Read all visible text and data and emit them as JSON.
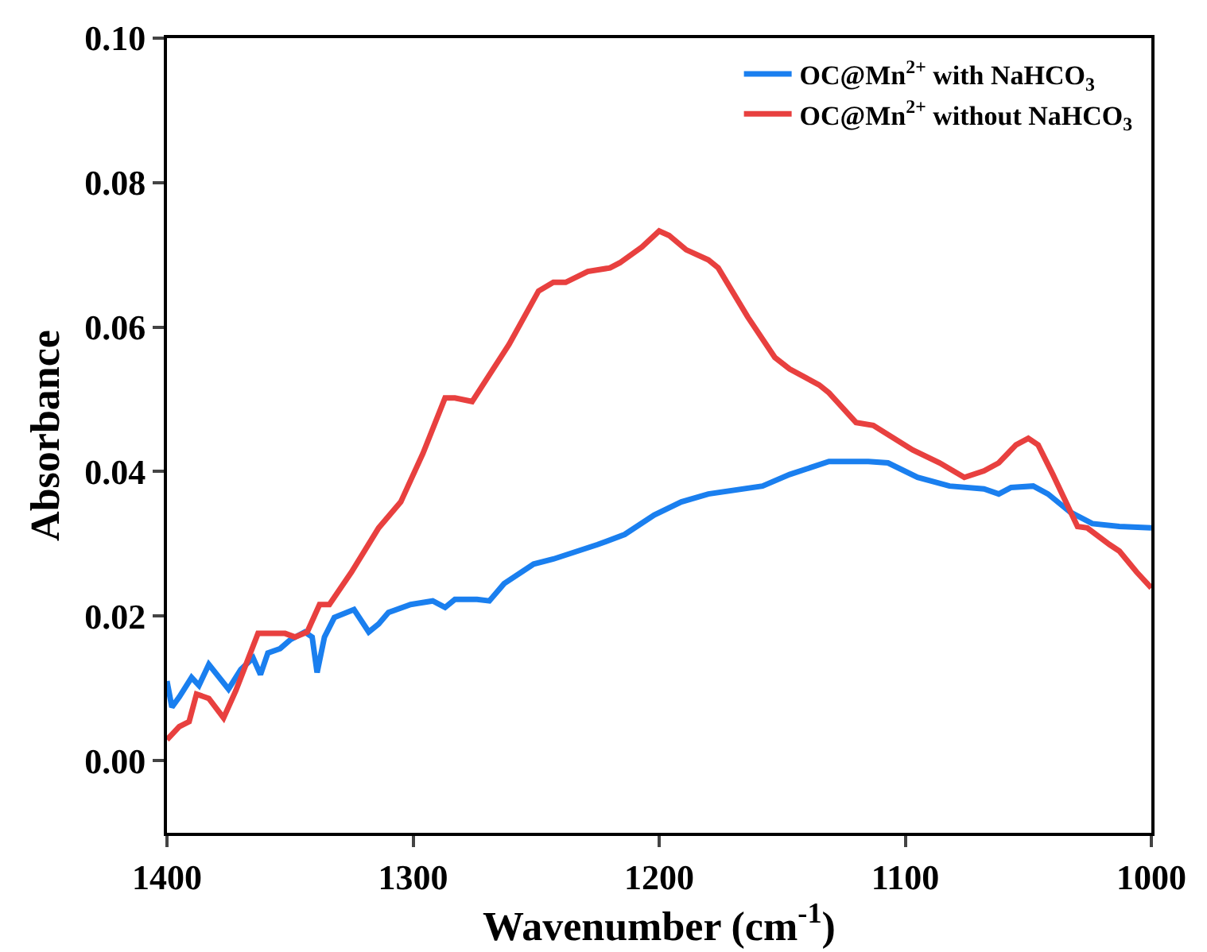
{
  "chart_data": {
    "type": "line",
    "xlabel": "Wavenumber (cm$^{-1}$)",
    "ylabel": "Absorbance",
    "xlim": [
      1400,
      1000
    ],
    "xticks": [
      1400,
      1300,
      1200,
      1100,
      1000
    ],
    "ylim": [
      -0.01,
      0.1
    ],
    "yticks": [
      {
        "value": 0,
        "label": "0.00"
      },
      {
        "value": 0.02,
        "label": "0.02"
      },
      {
        "value": 0.04,
        "label": "0.04"
      },
      {
        "value": 0.06,
        "label": "0.06"
      },
      {
        "value": 0.08,
        "label": "0.08"
      },
      {
        "value": 0.1,
        "label": "0.10"
      }
    ],
    "grid": false,
    "legend": "top right",
    "marker": "none",
    "line_style": "solid",
    "series": [
      {
        "name": "OC@Mn$^{2+}$ with NaHCO$_{3}$",
        "color": "#1a7fef",
        "x": [
          1400,
          1398,
          1395,
          1390,
          1387,
          1383,
          1375,
          1370,
          1365,
          1362,
          1359,
          1354,
          1350,
          1344,
          1341,
          1339,
          1336,
          1332,
          1324,
          1318,
          1314,
          1310,
          1301,
          1292,
          1287,
          1283,
          1274,
          1269,
          1263,
          1251,
          1243,
          1225,
          1214,
          1202,
          1191,
          1180,
          1158,
          1147,
          1131,
          1115,
          1107,
          1095,
          1082,
          1068,
          1062,
          1057,
          1048,
          1042,
          1033,
          1024,
          1013,
          1000
        ],
        "values": [
          0.011,
          0.0074,
          0.0088,
          0.0115,
          0.0104,
          0.0133,
          0.0099,
          0.0126,
          0.0142,
          0.0119,
          0.0149,
          0.0155,
          0.0167,
          0.0178,
          0.0171,
          0.0122,
          0.0171,
          0.0198,
          0.0209,
          0.0178,
          0.0189,
          0.0205,
          0.0216,
          0.0221,
          0.0212,
          0.0223,
          0.0223,
          0.0221,
          0.0245,
          0.0272,
          0.0279,
          0.0299,
          0.0313,
          0.034,
          0.0358,
          0.0369,
          0.038,
          0.0396,
          0.0414,
          0.0414,
          0.0412,
          0.0392,
          0.038,
          0.0376,
          0.0369,
          0.0378,
          0.038,
          0.0369,
          0.0344,
          0.0328,
          0.0324,
          0.0322
        ]
      },
      {
        "name": "OC@Mn$^{2+}$ without NaHCO$_{3}$",
        "color": "#e8403f",
        "x": [
          1400,
          1395,
          1391,
          1388,
          1383,
          1377,
          1372,
          1363,
          1352,
          1348,
          1343,
          1338,
          1334,
          1325,
          1314,
          1305,
          1296,
          1287,
          1283,
          1276,
          1261,
          1249,
          1243,
          1238,
          1229,
          1220,
          1216,
          1207,
          1200,
          1196,
          1189,
          1180,
          1176,
          1164,
          1153,
          1147,
          1135,
          1131,
          1120,
          1113,
          1097,
          1086,
          1076,
          1068,
          1062,
          1055,
          1050,
          1046,
          1040,
          1030,
          1026,
          1017,
          1013,
          1006,
          1000
        ],
        "values": [
          0.0029,
          0.0047,
          0.0054,
          0.0092,
          0.0086,
          0.0059,
          0.0097,
          0.0176,
          0.0176,
          0.0171,
          0.0178,
          0.0216,
          0.0216,
          0.0261,
          0.0322,
          0.0358,
          0.0425,
          0.0502,
          0.0502,
          0.0497,
          0.0576,
          0.065,
          0.0662,
          0.0662,
          0.0677,
          0.0682,
          0.0689,
          0.0711,
          0.0733,
          0.0727,
          0.0707,
          0.0693,
          0.0682,
          0.0614,
          0.0558,
          0.0542,
          0.052,
          0.0509,
          0.0468,
          0.0464,
          0.043,
          0.0412,
          0.0392,
          0.0401,
          0.0412,
          0.0437,
          0.0446,
          0.0437,
          0.0396,
          0.0324,
          0.0322,
          0.0299,
          0.029,
          0.0261,
          0.0239
        ]
      }
    ]
  }
}
